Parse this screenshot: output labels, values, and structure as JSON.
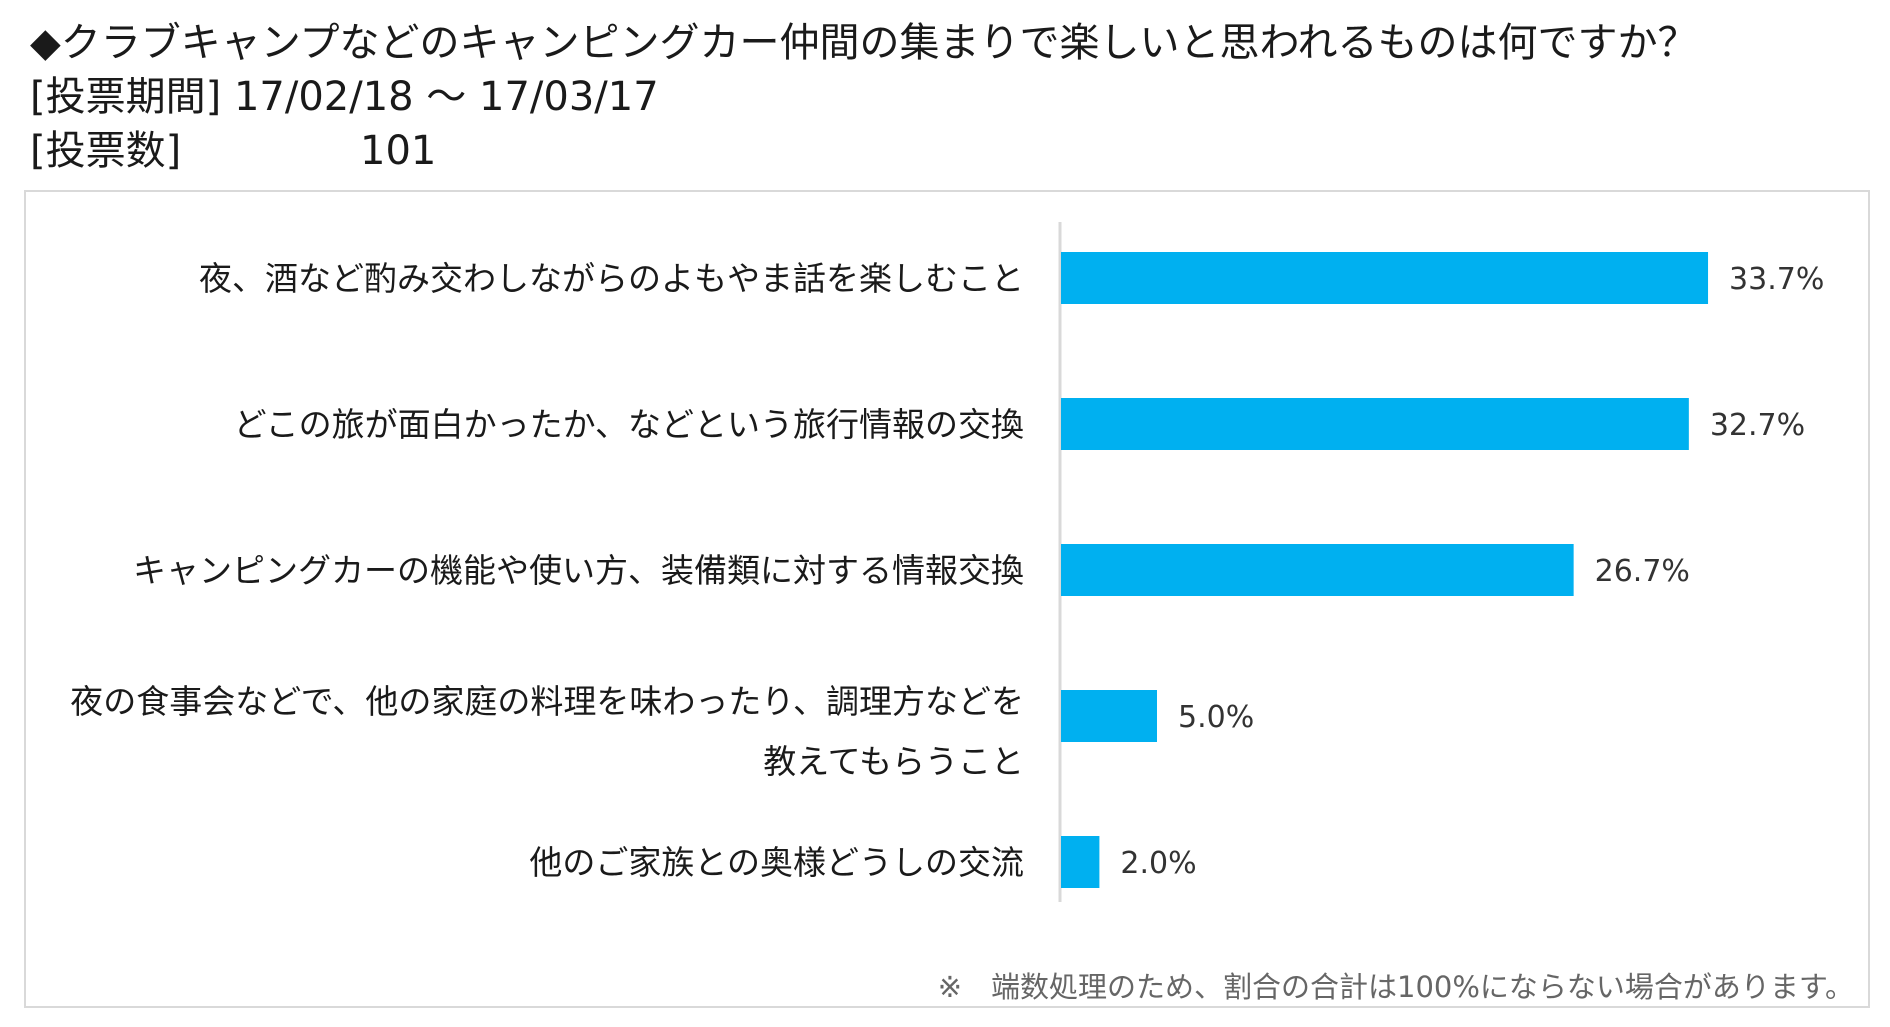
{
  "header": {
    "question": "◆クラブキャンプなどのキャンピングカー仲間の集まりで楽しいと思われるものは何ですか？",
    "period_label": "[投票期間]",
    "period_value": "17/02/18 〜 17/03/17",
    "count_label": "[投票数]",
    "count_value": "101"
  },
  "chart_data": {
    "type": "bar",
    "orientation": "horizontal",
    "categories": [
      [
        "夜、酒など酌み交わしながらのよもやま話を楽しむこと"
      ],
      [
        "どこの旅が面白かったか、などという旅行情報の交換"
      ],
      [
        "キャンピングカーの機能や使い方、装備類に対する情報交換"
      ],
      [
        "夜の食事会などで、他の家庭の料理を味わったり、調理方などを",
        "教えてもらうこと"
      ],
      [
        "他のご家族との奥様どうしの交流"
      ]
    ],
    "values": [
      33.7,
      32.7,
      26.7,
      5.0,
      2.0
    ],
    "value_labels": [
      "33.7%",
      "32.7%",
      "26.7%",
      "5.0%",
      "2.0%"
    ],
    "xlim": [
      0,
      45
    ],
    "bar_color": "#00B0F0",
    "axis_color": "#d9d9d9",
    "grid": false,
    "legend": "none"
  },
  "footnote": "※　端数処理のため、割合の合計は100%にならない場合があります。"
}
